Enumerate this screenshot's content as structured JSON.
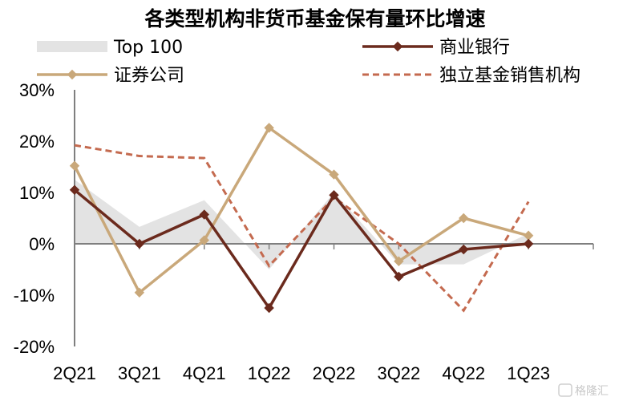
{
  "chart_data": {
    "type": "line",
    "title": "各类型机构非货币基金保有量环比增速",
    "categories": [
      "2Q21",
      "3Q21",
      "4Q21",
      "1Q22",
      "2Q22",
      "3Q22",
      "4Q22",
      "1Q23"
    ],
    "y_ticks": [
      "30%",
      "20%",
      "10%",
      "0%",
      "-10%",
      "-20%"
    ],
    "ylim": [
      -20,
      30
    ],
    "unit": "%",
    "grid": false,
    "legend_position": "top",
    "series": [
      {
        "name": "Top 100",
        "kind": "area",
        "color": "#e3e3e3",
        "values": [
          12.5,
          3.3,
          8.5,
          -5.0,
          10.0,
          -4.0,
          -4.0,
          2.0
        ]
      },
      {
        "name": "商业银行",
        "kind": "line",
        "color": "#6b2a1d",
        "marker": "diamond",
        "values": [
          10.5,
          0.0,
          5.7,
          -12.5,
          9.5,
          -6.4,
          -1.1,
          0.0
        ]
      },
      {
        "name": "证券公司",
        "kind": "line",
        "color": "#c9a87a",
        "marker": "diamond",
        "values": [
          15.2,
          -9.5,
          0.7,
          22.6,
          13.5,
          -3.4,
          5.0,
          1.6
        ]
      },
      {
        "name": "独立基金销售机构",
        "kind": "dashed",
        "color": "#c46a4f",
        "values": [
          19.2,
          17.1,
          16.7,
          -4.3,
          9.0,
          0.0,
          -13.0,
          8.2
        ]
      }
    ]
  },
  "watermark": "格隆汇"
}
